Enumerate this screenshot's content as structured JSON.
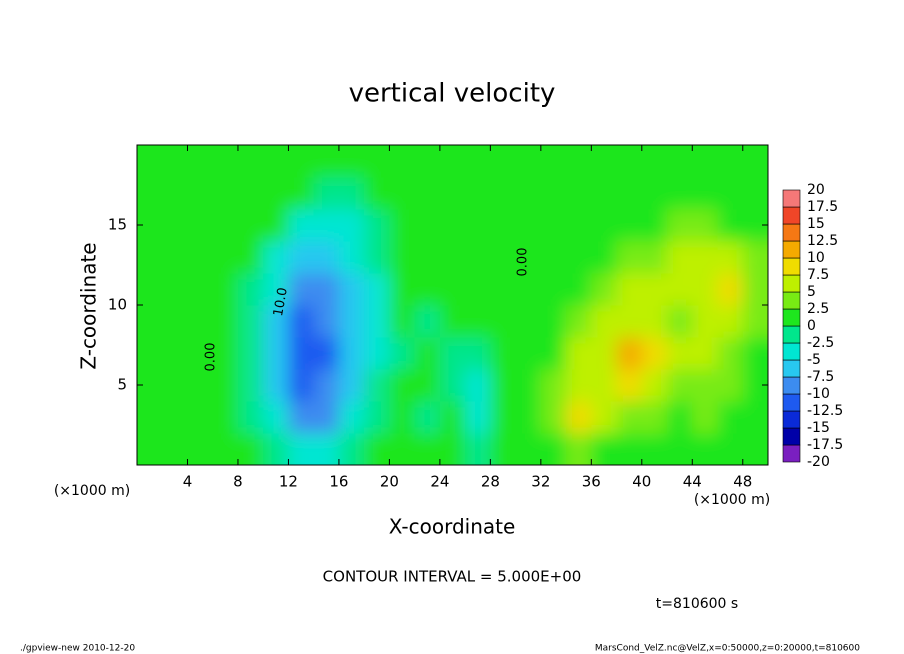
{
  "chart_data": {
    "type": "heatmap",
    "title": "vertical velocity",
    "x_label": "X-coordinate",
    "y_label": "Z-coordinate",
    "x_unit": "(×1000 m)",
    "y_unit": "(×1000 m)",
    "contour_interval_text": "CONTOUR INTERVAL = 5.000E+00",
    "time_text": "t=810600 s",
    "contour_labels": [
      "0.00",
      "0.00",
      "10.0"
    ],
    "footer_left": "./gpview-new  2010-12-20",
    "footer_right": "MarsCond_VelZ.nc@VelZ,x=0:50000,z=0:20000,t=810600",
    "xlim": [
      0,
      50
    ],
    "ylim": [
      0,
      20
    ],
    "xticks": [
      4,
      8,
      12,
      16,
      20,
      24,
      28,
      32,
      36,
      40,
      44,
      48
    ],
    "yticks": [
      5,
      10,
      15
    ],
    "x": [
      1,
      3,
      5,
      7,
      9,
      11,
      13,
      15,
      17,
      19,
      21,
      23,
      25,
      27,
      29,
      31,
      33,
      35,
      37,
      39,
      41,
      43,
      45,
      47,
      49
    ],
    "z": [
      1,
      3,
      5,
      7,
      9,
      11,
      13,
      15,
      17,
      19
    ],
    "values": [
      [
        1,
        1,
        2,
        1,
        0,
        -2,
        -3,
        -5,
        -2,
        0,
        0,
        0,
        0,
        -2,
        0,
        1,
        2,
        3,
        2,
        2,
        1,
        1,
        2,
        1,
        1
      ],
      [
        1,
        2,
        2,
        1,
        -1,
        -4,
        -8,
        -9,
        -4,
        -1,
        0,
        -1,
        0,
        -4,
        0,
        1,
        3,
        8,
        5,
        4,
        3,
        2,
        3,
        2,
        2
      ],
      [
        1,
        2,
        1,
        1,
        -2,
        -6,
        -11,
        -10,
        -6,
        -2,
        0,
        0,
        -1,
        -3,
        1,
        1,
        3,
        5,
        7,
        9,
        6,
        4,
        4,
        3,
        2
      ],
      [
        1,
        1,
        1,
        1,
        -2,
        -7,
        -12,
        -11,
        -7,
        -3,
        -1,
        0,
        -1,
        -1,
        1,
        1,
        2,
        5,
        7,
        10,
        8,
        5,
        5,
        3,
        2
      ],
      [
        1,
        1,
        1,
        1,
        -2,
        -6,
        -11,
        -10,
        -6,
        -3,
        0,
        -1,
        0,
        0,
        1,
        1,
        2,
        4,
        6,
        7,
        6,
        4,
        6,
        6,
        3
      ],
      [
        1,
        1,
        1,
        1,
        -1,
        -5,
        -9,
        -8,
        -6,
        -3,
        0,
        1,
        1,
        1,
        1,
        1,
        1,
        2,
        4,
        5,
        6,
        6,
        7,
        9,
        4
      ],
      [
        1,
        1,
        1,
        1,
        0,
        -3,
        -6,
        -7,
        -5,
        -2,
        0,
        1,
        1,
        1,
        1,
        1,
        1,
        1,
        2,
        3,
        4,
        5,
        6,
        5,
        3
      ],
      [
        1,
        1,
        1,
        1,
        1,
        0,
        -3,
        -5,
        -4,
        -1,
        1,
        1,
        1,
        1,
        1,
        1,
        1,
        1,
        1,
        1,
        2,
        3,
        3,
        2,
        1
      ],
      [
        1,
        1,
        1,
        1,
        1,
        1,
        0,
        -1,
        -1,
        0,
        1,
        1,
        1,
        1,
        1,
        1,
        1,
        1,
        1,
        1,
        1,
        1,
        1,
        1,
        1
      ],
      [
        1,
        1,
        1,
        1,
        1,
        1,
        1,
        1,
        1,
        1,
        1,
        1,
        1,
        1,
        1,
        1,
        1,
        1,
        1,
        1,
        1,
        1,
        1,
        1,
        1
      ]
    ],
    "levels": [
      -20,
      -17.5,
      -15,
      -12.5,
      -10,
      -7.5,
      -5,
      -2.5,
      0,
      2.5,
      5,
      7.5,
      10,
      12.5,
      15,
      17.5,
      20
    ],
    "colors": [
      "#7a1fc0",
      "#0000a8",
      "#0a2ad8",
      "#1e5af0",
      "#3c8cf0",
      "#28c8f0",
      "#00e6d2",
      "#00e68c",
      "#1ee61e",
      "#78eb14",
      "#bef000",
      "#f0dc00",
      "#f5aa00",
      "#f57814",
      "#f04628",
      "#f57878"
    ]
  }
}
